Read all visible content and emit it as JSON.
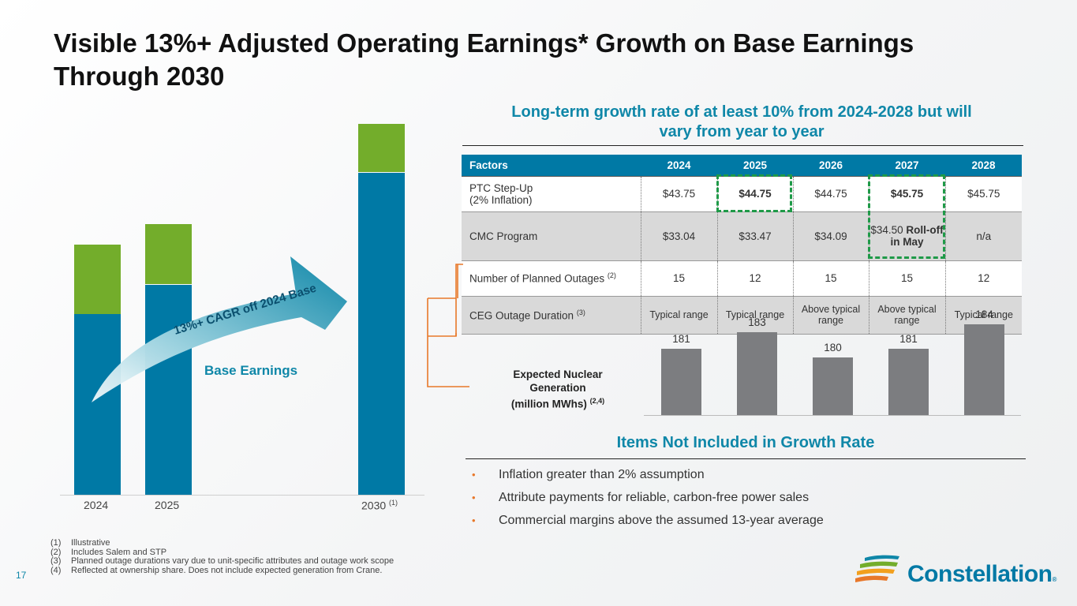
{
  "title": {
    "line1": "Visible 13%+ Adjusted Operating Earnings* Growth on Base Earnings",
    "line2": "Through 2030"
  },
  "left_chart": {
    "categories": [
      "2024",
      "2025",
      "2030"
    ],
    "label_2030_sup": "(1)",
    "base_earnings_label": "Base Earnings",
    "arrow_label": "13%+ CAGR off 2024 Base",
    "colors": {
      "base": "#0079a5",
      "growth": "#73ad2b",
      "arrow": "#0f87a8"
    }
  },
  "growth_heading": {
    "line1": "Long-term growth rate of at least 10% from 2024-2028 but will",
    "line2": "vary from year to year"
  },
  "factors_table": {
    "headers": [
      "Factors",
      "2024",
      "2025",
      "2026",
      "2027",
      "2028"
    ],
    "rows": [
      {
        "label_line1": "PTC Step-Up",
        "label_line2": "(2% Inflation)",
        "values": [
          "$43.75",
          "$44.75",
          "$44.75",
          "$45.75",
          "$45.75"
        ]
      },
      {
        "label": "CMC Program",
        "values": [
          "$33.04",
          "$33.47",
          "$34.09",
          "$34.50",
          "n/a"
        ],
        "note_2027": "Roll-off in May"
      },
      {
        "label": "Number of Planned Outages",
        "sup": "(2)",
        "values": [
          "15",
          "12",
          "15",
          "15",
          "12"
        ]
      },
      {
        "label": "CEG Outage Duration",
        "sup": "(3)",
        "values": [
          "Typical range",
          "Typical range",
          "Above typical range",
          "Above typical range",
          "Typical range"
        ]
      }
    ]
  },
  "nuclear_generation": {
    "label": "Expected Nuclear Generation (million MWhs)",
    "label_line1": "Expected Nuclear",
    "label_line2": "Generation",
    "label_line3": "(million MWhs)",
    "sup": "(2,4)",
    "chart_data": {
      "type": "bar",
      "title": "Expected Nuclear Generation (million MWhs)",
      "categories": [
        "2024",
        "2025",
        "2026",
        "2027",
        "2028"
      ],
      "values": [
        181,
        183,
        180,
        181,
        184
      ],
      "value_labels": [
        "181",
        "183",
        "180",
        "181",
        "184"
      ],
      "bar_color": "#7c7d80"
    }
  },
  "not_included": {
    "heading": "Items Not Included in Growth Rate",
    "bullets": [
      "Inflation greater than 2% assumption",
      "Attribute payments for reliable, carbon-free power sales",
      "Commercial margins above the assumed 13-year average"
    ]
  },
  "footnotes": [
    {
      "num": "(1)",
      "text": "Illustrative"
    },
    {
      "num": "(2)",
      "text": "Includes Salem and STP"
    },
    {
      "num": "(3)",
      "text": "Planned outage durations vary due to unit-specific attributes and outage work scope"
    },
    {
      "num": "(4)",
      "text": "Reflected at ownership share. Does not include expected generation from Crane."
    }
  ],
  "page_number": "17",
  "logo": {
    "name": "Constellation",
    "reg": "®"
  }
}
